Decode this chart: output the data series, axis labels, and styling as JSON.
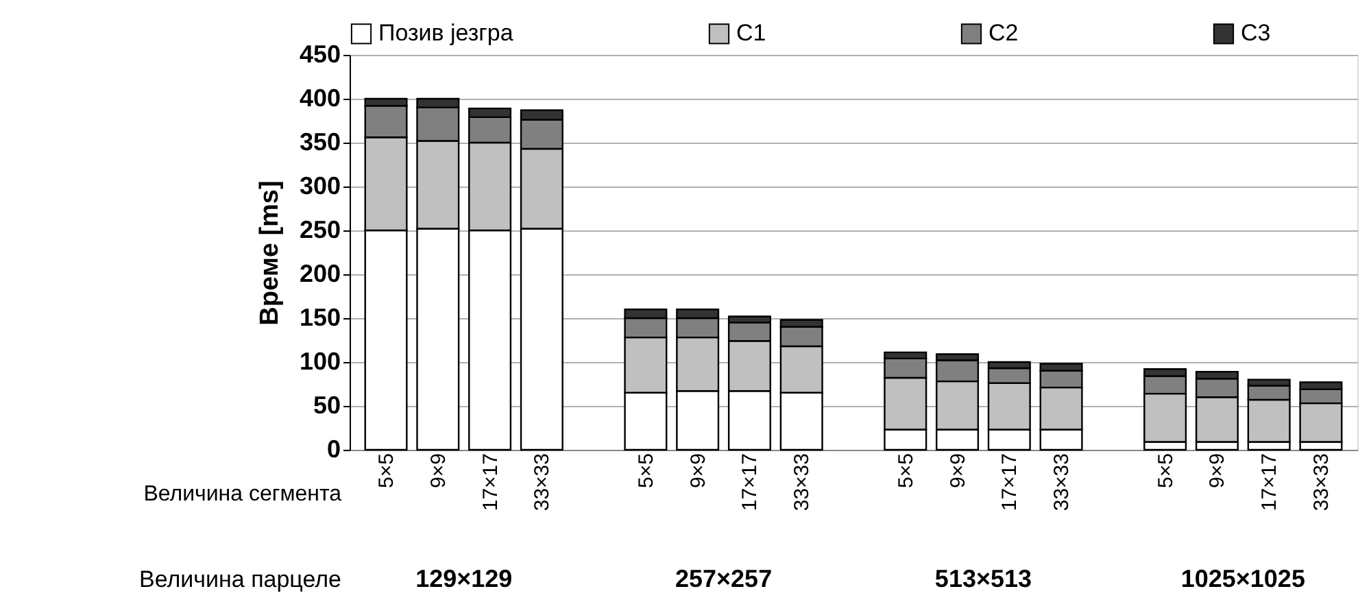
{
  "chart_data": {
    "type": "bar",
    "stacked": true,
    "ylabel": "Време [ms]",
    "xlabel": "Величина сегмента",
    "categories": [
      "5×5",
      "9×9",
      "17×17",
      "33×33",
      "5×5",
      "9×9",
      "17×17",
      "33×33",
      "5×5",
      "9×9",
      "17×17",
      "33×33",
      "5×5",
      "9×9",
      "17×17",
      "33×33"
    ],
    "series": [
      {
        "name": "Позив језгра",
        "color": "#ffffff",
        "values": [
          250,
          252,
          250,
          252,
          65,
          67,
          67,
          65,
          23,
          23,
          23,
          23,
          9,
          9,
          9,
          9
        ]
      },
      {
        "name": "C1",
        "color": "#c0c0c0",
        "values": [
          106,
          100,
          100,
          91,
          63,
          61,
          57,
          53,
          59,
          55,
          53,
          48,
          55,
          51,
          48,
          44
        ]
      },
      {
        "name": "C2",
        "color": "#808080",
        "values": [
          36,
          38,
          29,
          33,
          22,
          22,
          21,
          22,
          22,
          24,
          17,
          19,
          20,
          21,
          16,
          16
        ]
      },
      {
        "name": "C3",
        "color": "#333333",
        "values": [
          8,
          10,
          10,
          11,
          10,
          10,
          7,
          8,
          7,
          7,
          7,
          8,
          8,
          8,
          7,
          8
        ]
      }
    ],
    "ylim": [
      0,
      450
    ],
    "yticks": [
      0,
      50,
      100,
      150,
      200,
      250,
      300,
      350,
      400,
      450
    ],
    "grid": "y",
    "legend": "top",
    "annotations": [
      "Величина парцеле",
      "129×129",
      "257×257",
      "513×513",
      "1025×1025"
    ]
  }
}
